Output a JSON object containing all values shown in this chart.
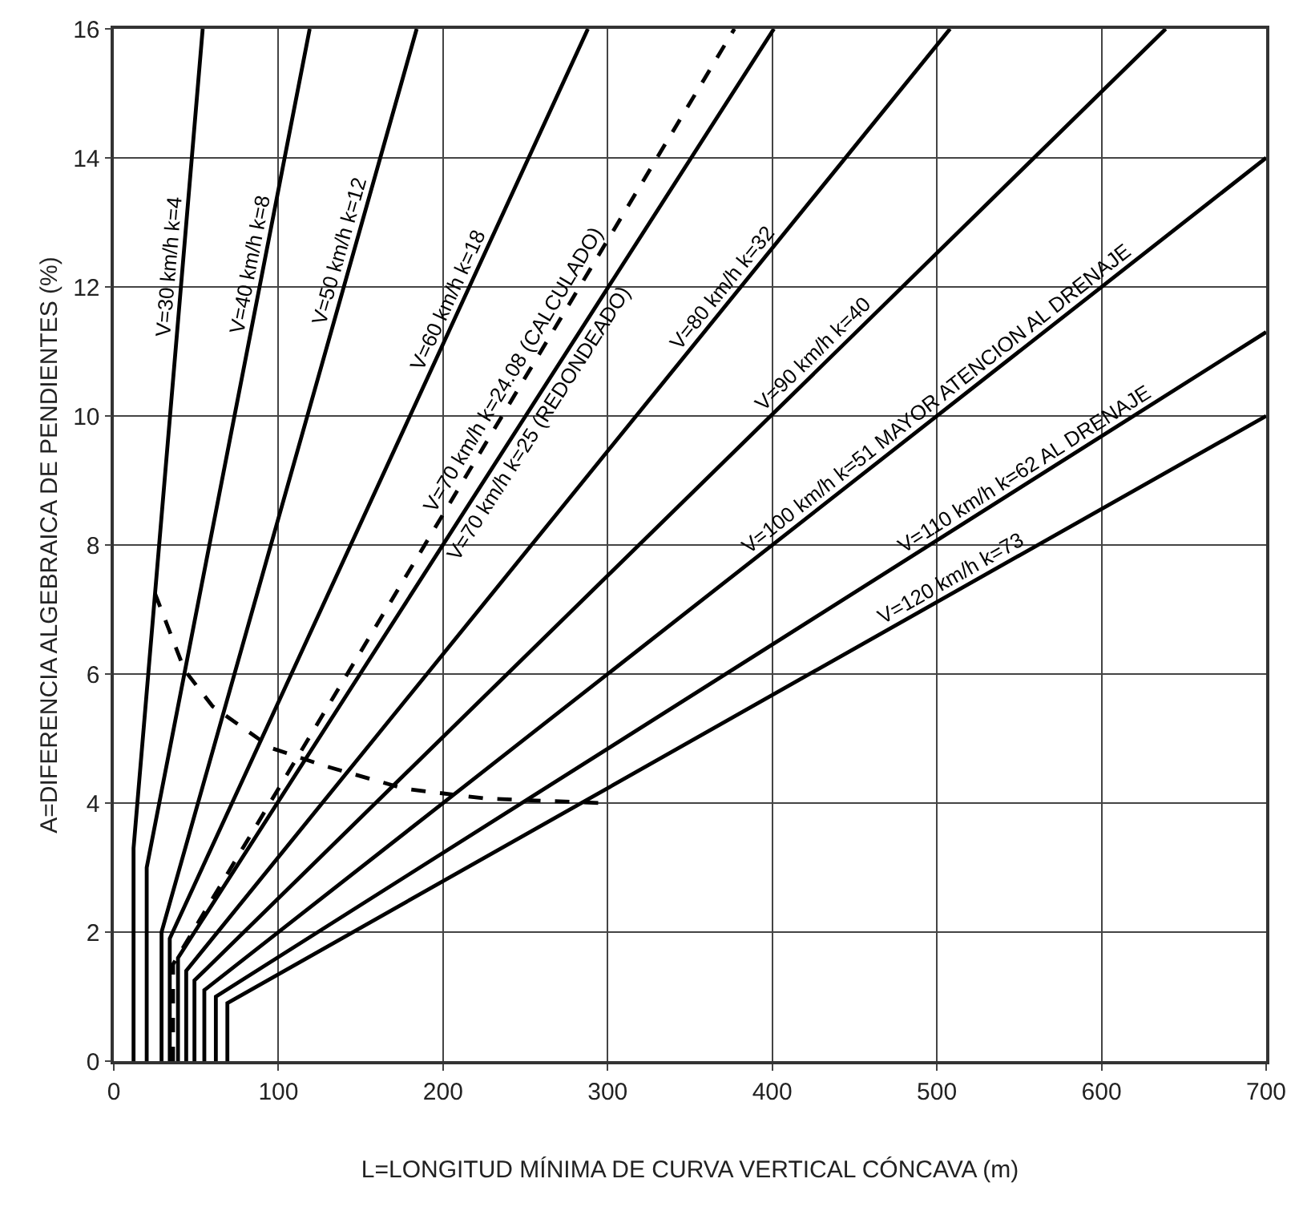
{
  "chart_data": {
    "type": "line",
    "xlabel": "L=LONGITUD MÍNIMA DE CURVA VERTICAL CÓNCAVA (m)",
    "ylabel": "A=DIFERENCIA ALGEBRAICA DE PENDIENTES (%)",
    "xlim": [
      0,
      700
    ],
    "ylim": [
      0,
      16
    ],
    "xticks": [
      0,
      100,
      200,
      300,
      400,
      500,
      600,
      700
    ],
    "yticks": [
      0,
      2,
      4,
      6,
      8,
      10,
      12,
      14,
      16
    ],
    "grid": true,
    "marker": "none",
    "series": [
      {
        "name": "V=30 km/h k=4",
        "color": "#000000",
        "line_style": "solid",
        "x": [
          12,
          12,
          54
        ],
        "values": [
          0,
          3.3,
          16
        ]
      },
      {
        "name": "V=40 km/h k=8",
        "color": "#000000",
        "line_style": "solid",
        "x": [
          20,
          20,
          119
        ],
        "values": [
          0,
          3,
          16
        ]
      },
      {
        "name": "V=50 km/h k=12",
        "color": "#000000",
        "line_style": "solid",
        "x": [
          29,
          29,
          184
        ],
        "values": [
          0,
          2,
          16
        ]
      },
      {
        "name": "V=60 km/h k=18",
        "color": "#000000",
        "line_style": "solid",
        "x": [
          34,
          34,
          288
        ],
        "values": [
          0,
          1.9,
          16
        ]
      },
      {
        "name": "V=70 km/h k=24.08 (CALCULADO)",
        "color": "#000000",
        "line_style": "dashed",
        "x": [
          36,
          36,
          377
        ],
        "values": [
          0,
          1.5,
          16
        ]
      },
      {
        "name": "V=70 km/h k=25 (REDONDEADO)",
        "color": "#000000",
        "line_style": "solid",
        "x": [
          39,
          39,
          401
        ],
        "values": [
          0,
          1.6,
          16
        ]
      },
      {
        "name": "V=80 km/h k=32",
        "color": "#000000",
        "line_style": "solid",
        "x": [
          44,
          44,
          508
        ],
        "values": [
          0,
          1.4,
          16
        ]
      },
      {
        "name": "V=90 km/h k=40",
        "color": "#000000",
        "line_style": "solid",
        "x": [
          49,
          49,
          639
        ],
        "values": [
          0,
          1.25,
          16
        ]
      },
      {
        "name": "V=100 km/h k=51 MAYOR ATENCION AL DRENAJE",
        "color": "#000000",
        "line_style": "solid",
        "x": [
          55,
          55,
          700
        ],
        "values": [
          0,
          1.1,
          14
        ]
      },
      {
        "name": "V=110 km/h k=62 AL DRENAJE",
        "color": "#000000",
        "line_style": "solid",
        "x": [
          62,
          62,
          700
        ],
        "values": [
          0,
          1,
          11.3
        ]
      },
      {
        "name": "V=120 km/h k=73",
        "color": "#000000",
        "line_style": "solid",
        "x": [
          69,
          69,
          700
        ],
        "values": [
          0,
          0.9,
          10
        ]
      },
      {
        "color": "#000000",
        "line_style": "dashed",
        "x": [
          25,
          43,
          60,
          96,
          129,
          177,
          226,
          296
        ],
        "values": [
          7.25,
          6.06,
          5.5,
          4.85,
          4.57,
          4.22,
          4.07,
          4.0
        ]
      }
    ]
  }
}
